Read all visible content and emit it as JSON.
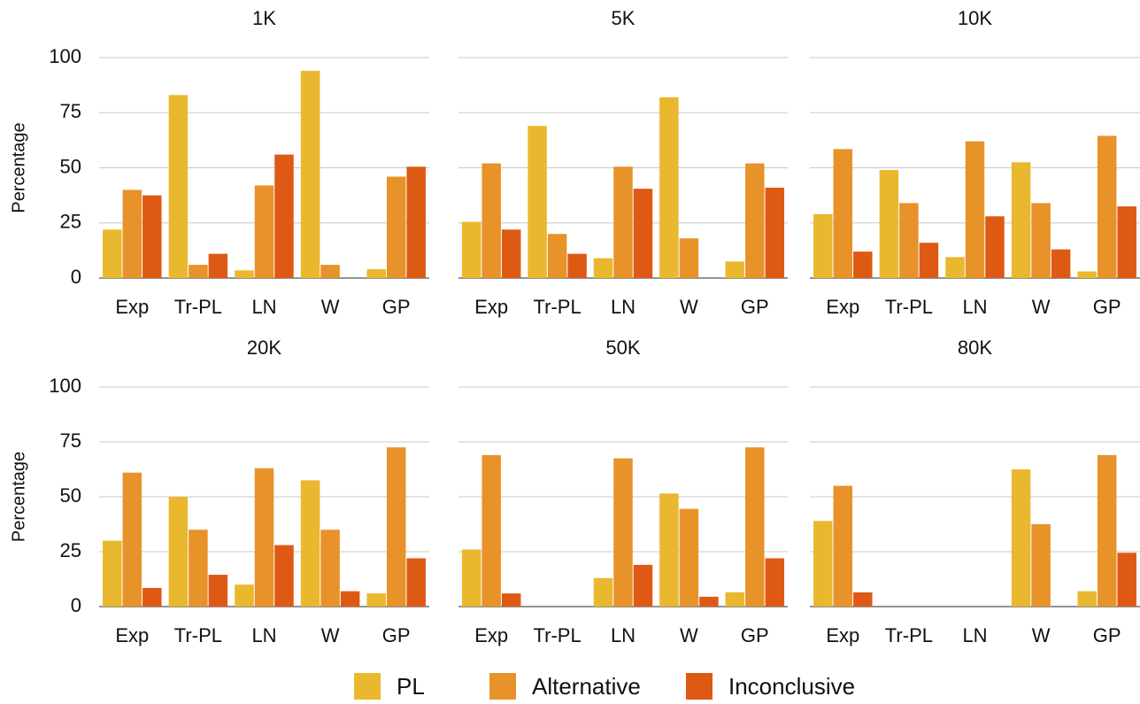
{
  "chart_data": [
    {
      "type": "bar",
      "title": "1K",
      "ylabel": "Percentage",
      "categories": [
        "Exp",
        "Tr-PL",
        "LN",
        "W",
        "GP"
      ],
      "ylim": [
        0,
        100
      ],
      "yticks": [
        0,
        25,
        50,
        75,
        100
      ],
      "grid": true,
      "series": [
        {
          "name": "PL",
          "color": "#e9b82e",
          "values": [
            22,
            83,
            3.5,
            94,
            4
          ]
        },
        {
          "name": "Alternative",
          "color": "#e8922a",
          "values": [
            40,
            6,
            42,
            6,
            46
          ]
        },
        {
          "name": "Inconclusive",
          "color": "#de5a14",
          "values": [
            37.5,
            11,
            56,
            0,
            50.5
          ]
        }
      ]
    },
    {
      "type": "bar",
      "title": "5K",
      "categories": [
        "Exp",
        "Tr-PL",
        "LN",
        "W",
        "GP"
      ],
      "ylim": [
        0,
        100
      ],
      "yticks": [
        0,
        25,
        50,
        75,
        100
      ],
      "grid": true,
      "series": [
        {
          "values": [
            25.5,
            69,
            9,
            82,
            7.5
          ]
        },
        {
          "values": [
            52,
            20,
            50.5,
            18,
            52
          ]
        },
        {
          "values": [
            22,
            11,
            40.5,
            0,
            41
          ]
        }
      ]
    },
    {
      "type": "bar",
      "title": "10K",
      "categories": [
        "Exp",
        "Tr-PL",
        "LN",
        "W",
        "GP"
      ],
      "ylim": [
        0,
        100
      ],
      "yticks": [
        0,
        25,
        50,
        75,
        100
      ],
      "grid": true,
      "series": [
        {
          "values": [
            29,
            49,
            9.5,
            52.5,
            3
          ]
        },
        {
          "values": [
            58.5,
            34,
            62,
            34,
            64.5
          ]
        },
        {
          "values": [
            12,
            16,
            28,
            13,
            32.5
          ]
        }
      ]
    },
    {
      "type": "bar",
      "title": "20K",
      "ylabel": "Percentage",
      "categories": [
        "Exp",
        "Tr-PL",
        "LN",
        "W",
        "GP"
      ],
      "ylim": [
        0,
        100
      ],
      "yticks": [
        0,
        25,
        50,
        75,
        100
      ],
      "grid": true,
      "series": [
        {
          "values": [
            30,
            50,
            10,
            57.5,
            6
          ]
        },
        {
          "values": [
            61,
            35,
            63,
            35,
            72.5
          ]
        },
        {
          "values": [
            8.5,
            14.5,
            28,
            7,
            22
          ]
        }
      ]
    },
    {
      "type": "bar",
      "title": "50K",
      "categories": [
        "Exp",
        "Tr-PL",
        "LN",
        "W",
        "GP"
      ],
      "ylim": [
        0,
        100
      ],
      "yticks": [
        0,
        25,
        50,
        75,
        100
      ],
      "grid": true,
      "series": [
        {
          "values": [
            26,
            0,
            13,
            51.5,
            6.5
          ]
        },
        {
          "values": [
            69,
            0,
            67.5,
            44.5,
            72.5
          ]
        },
        {
          "values": [
            6,
            0,
            19,
            4.5,
            22
          ]
        }
      ]
    },
    {
      "type": "bar",
      "title": "80K",
      "categories": [
        "Exp",
        "Tr-PL",
        "LN",
        "W",
        "GP"
      ],
      "ylim": [
        0,
        100
      ],
      "yticks": [
        0,
        25,
        50,
        75,
        100
      ],
      "grid": true,
      "series": [
        {
          "values": [
            39,
            0,
            0,
            62.5,
            7
          ]
        },
        {
          "values": [
            55,
            0,
            0,
            37.5,
            69
          ]
        },
        {
          "values": [
            6.5,
            0,
            0,
            0,
            24.5
          ]
        }
      ]
    }
  ]
}
